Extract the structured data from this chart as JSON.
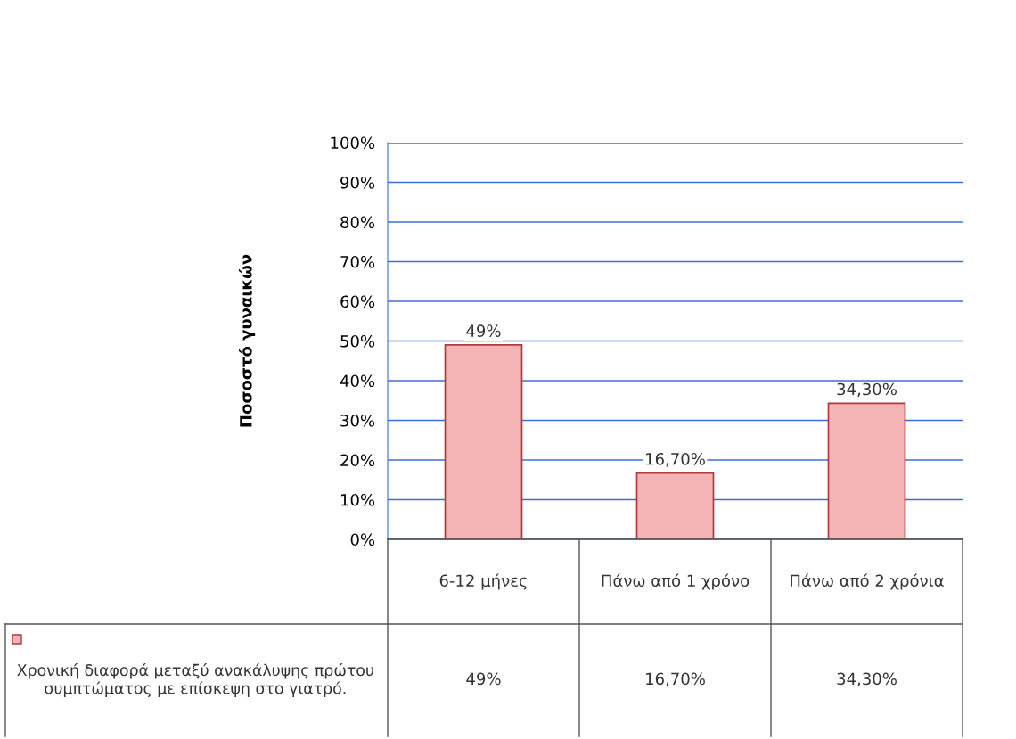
{
  "chart_data": {
    "type": "bar",
    "ylabel": "Ποσοστό γυναικών",
    "categories": [
      "6-12 μήνες",
      "Πάνω από 1 χρόνο",
      "Πάνω από 2 χρόνια"
    ],
    "series": [
      {
        "name": "Χρονική διαφορά μεταξύ ανακάλυψης πρώτου συμπτώματος με επίσκεψη στο γιατρό.",
        "color": "#f4b3b5",
        "values": [
          49,
          16.7,
          34.3
        ],
        "value_labels": [
          "49%",
          "16,70%",
          "34,30%"
        ]
      }
    ],
    "ylim": [
      0,
      100
    ],
    "yticks": [
      {
        "value": 0,
        "label": "0%"
      },
      {
        "value": 10,
        "label": "10%"
      },
      {
        "value": 20,
        "label": "20%"
      },
      {
        "value": 30,
        "label": "30%"
      },
      {
        "value": 40,
        "label": "40%"
      },
      {
        "value": 50,
        "label": "50%"
      },
      {
        "value": 60,
        "label": "60%"
      },
      {
        "value": 70,
        "label": "70%"
      },
      {
        "value": 80,
        "label": "80%"
      },
      {
        "value": 90,
        "label": "90%"
      },
      {
        "value": 100,
        "label": "100%"
      }
    ],
    "grid": "y",
    "legend": "bottom left"
  }
}
